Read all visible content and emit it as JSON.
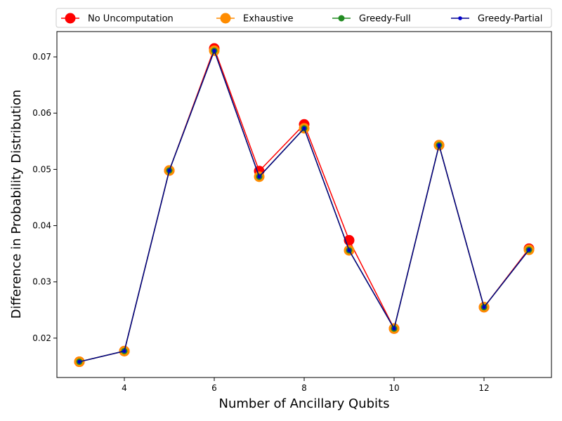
{
  "chart_data": {
    "type": "line",
    "title": "",
    "xlabel": "Number of Ancillary Qubits",
    "ylabel": "Difference in Probability Distribution",
    "xlim": [
      2.5,
      13.5
    ],
    "ylim": [
      0.013,
      0.0745
    ],
    "xticks": [
      4,
      6,
      8,
      10,
      12
    ],
    "yticks": [
      0.02,
      0.03,
      0.04,
      0.05,
      0.06,
      0.07
    ],
    "grid": false,
    "legend_position": "top, above plot",
    "x": [
      3,
      4,
      5,
      6,
      7,
      8,
      9,
      10,
      11,
      12,
      13
    ],
    "series": [
      {
        "name": "No Uncomputation",
        "color": "#ff0000",
        "line_color": "#ff0000",
        "marker_size": 7.5,
        "values": [
          0.0158,
          0.0177,
          0.0498,
          0.0715,
          0.0497,
          0.058,
          0.0374,
          0.0217,
          0.0543,
          0.0255,
          0.0359
        ]
      },
      {
        "name": "Exhaustive",
        "color": "#ff8c00",
        "line_color": "#ff8c00",
        "marker_size": 7.5,
        "values": [
          0.0158,
          0.0177,
          0.0498,
          0.0711,
          0.0487,
          0.0573,
          0.0356,
          0.0217,
          0.0543,
          0.0255,
          0.0357
        ]
      },
      {
        "name": "Greedy-Full",
        "color": "#228b22",
        "line_color": "#228b22",
        "marker_size": 4.5,
        "values": [
          0.0158,
          0.0177,
          0.0498,
          0.0711,
          0.0487,
          0.0573,
          0.0356,
          0.0217,
          0.0543,
          0.0255,
          0.0357
        ]
      },
      {
        "name": "Greedy-Partial",
        "color": "#0000cd",
        "line_color": "#00008b",
        "marker_size": 2.8,
        "values": [
          0.0158,
          0.0177,
          0.0498,
          0.0711,
          0.0487,
          0.0573,
          0.0356,
          0.0217,
          0.0543,
          0.0255,
          0.0357
        ]
      }
    ]
  }
}
